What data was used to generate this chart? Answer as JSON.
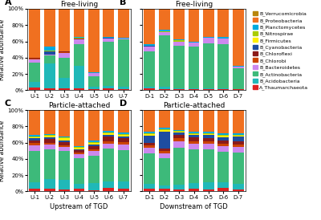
{
  "legend_labels_top_to_bottom": [
    "B_Verrucomicrobia",
    "B_Proteobacteria",
    "B_Planctomycetes",
    "B_Nitrospirae",
    "B_Firmicutes",
    "B_Cyanobacteria",
    "B_Chloroflexi",
    "B_Chlorobi",
    "B_Bacteroidetes",
    "B_Actinobacteria",
    "B_Acidobacteria",
    "A_Thaumarchaeota"
  ],
  "colors_top_to_bottom": [
    "#b8860b",
    "#f07020",
    "#00aadd",
    "#aacc00",
    "#ffee00",
    "#1e4da0",
    "#8b1a1a",
    "#cc4400",
    "#cc88ee",
    "#3dba7a",
    "#20b8b8",
    "#dd2222"
  ],
  "panel_A_title": "Free-living",
  "panel_B_title": "Free-living",
  "panel_C_title": "Particle-attached",
  "panel_D_title": "Particle-attached",
  "xlabel_left": "Upstream of TGD",
  "xlabel_right": "Downstream of TGD",
  "ylabel": "Relative abundance",
  "upstream_cats": [
    "U-1",
    "U-2",
    "U-3",
    "U-4",
    "U-5",
    "U-6",
    "U-7"
  ],
  "downstream_cats": [
    "D-1",
    "D-2",
    "D-3",
    "D-4",
    "D-5",
    "D-6",
    "D-7"
  ],
  "A_data_bottom_to_top": [
    [
      0.03,
      0.02,
      0.02,
      0.02,
      0.01,
      0.02,
      0.01
    ],
    [
      0.07,
      0.31,
      0.13,
      0.28,
      0.03,
      0.03,
      0.03
    ],
    [
      0.24,
      0.1,
      0.25,
      0.27,
      0.13,
      0.55,
      0.58
    ],
    [
      0.04,
      0.01,
      0.06,
      0.05,
      0.04,
      0.03,
      0.01
    ],
    [
      0.01,
      0.0,
      0.01,
      0.0,
      0.0,
      0.0,
      0.0
    ],
    [
      0.01,
      0.0,
      0.01,
      0.01,
      0.0,
      0.0,
      0.0
    ],
    [
      0.0,
      0.04,
      0.0,
      0.0,
      0.0,
      0.01,
      0.0
    ],
    [
      0.0,
      0.0,
      0.0,
      0.0,
      0.0,
      0.0,
      0.0
    ],
    [
      0.0,
      0.01,
      0.0,
      0.01,
      0.0,
      0.0,
      0.0
    ],
    [
      0.0,
      0.05,
      0.0,
      0.01,
      0.01,
      0.01,
      0.01
    ],
    [
      0.6,
      0.46,
      0.52,
      0.35,
      0.78,
      0.35,
      0.36
    ],
    [
      0.0,
      0.0,
      0.0,
      0.0,
      0.0,
      0.0,
      0.0
    ]
  ],
  "B_data_bottom_to_top": [
    [
      0.02,
      0.01,
      0.01,
      0.01,
      0.01,
      0.01,
      0.01
    ],
    [
      0.02,
      0.03,
      0.01,
      0.01,
      0.01,
      0.01,
      0.0
    ],
    [
      0.44,
      0.63,
      0.53,
      0.52,
      0.56,
      0.55,
      0.26
    ],
    [
      0.06,
      0.04,
      0.05,
      0.05,
      0.06,
      0.06,
      0.02
    ],
    [
      0.0,
      0.0,
      0.0,
      0.0,
      0.0,
      0.0,
      0.0
    ],
    [
      0.0,
      0.0,
      0.0,
      0.0,
      0.0,
      0.0,
      0.0
    ],
    [
      0.01,
      0.0,
      0.0,
      0.0,
      0.0,
      0.0,
      0.0
    ],
    [
      0.0,
      0.0,
      0.0,
      0.0,
      0.0,
      0.0,
      0.0
    ],
    [
      0.0,
      0.01,
      0.01,
      0.0,
      0.0,
      0.0,
      0.0
    ],
    [
      0.02,
      0.02,
      0.01,
      0.01,
      0.01,
      0.02,
      0.01
    ],
    [
      0.43,
      0.26,
      0.38,
      0.4,
      0.35,
      0.35,
      0.7
    ],
    [
      0.0,
      0.0,
      0.0,
      0.0,
      0.0,
      0.0,
      0.0
    ]
  ],
  "C_data_bottom_to_top": [
    [
      0.03,
      0.03,
      0.02,
      0.03,
      0.01,
      0.04,
      0.03
    ],
    [
      0.08,
      0.12,
      0.12,
      0.06,
      0.09,
      0.08,
      0.09
    ],
    [
      0.39,
      0.37,
      0.36,
      0.32,
      0.34,
      0.41,
      0.39
    ],
    [
      0.07,
      0.06,
      0.05,
      0.05,
      0.06,
      0.06,
      0.07
    ],
    [
      0.03,
      0.02,
      0.02,
      0.02,
      0.02,
      0.03,
      0.03
    ],
    [
      0.03,
      0.04,
      0.04,
      0.03,
      0.04,
      0.05,
      0.04
    ],
    [
      0.02,
      0.02,
      0.02,
      0.01,
      0.02,
      0.02,
      0.02
    ],
    [
      0.01,
      0.02,
      0.02,
      0.02,
      0.02,
      0.02,
      0.02
    ],
    [
      0.01,
      0.01,
      0.01,
      0.01,
      0.01,
      0.01,
      0.01
    ],
    [
      0.02,
      0.01,
      0.01,
      0.01,
      0.02,
      0.02,
      0.02
    ],
    [
      0.31,
      0.3,
      0.33,
      0.44,
      0.37,
      0.26,
      0.28
    ],
    [
      0.0,
      0.0,
      0.0,
      0.0,
      0.0,
      0.0,
      0.0
    ]
  ],
  "D_data_bottom_to_top": [
    [
      0.03,
      0.03,
      0.02,
      0.03,
      0.02,
      0.04,
      0.02
    ],
    [
      0.06,
      0.04,
      0.06,
      0.07,
      0.09,
      0.07,
      0.07
    ],
    [
      0.38,
      0.34,
      0.46,
      0.42,
      0.41,
      0.38,
      0.39
    ],
    [
      0.07,
      0.06,
      0.08,
      0.07,
      0.07,
      0.07,
      0.07
    ],
    [
      0.03,
      0.03,
      0.03,
      0.03,
      0.03,
      0.03,
      0.03
    ],
    [
      0.03,
      0.03,
      0.04,
      0.04,
      0.03,
      0.04,
      0.04
    ],
    [
      0.08,
      0.2,
      0.03,
      0.03,
      0.04,
      0.03,
      0.05
    ],
    [
      0.02,
      0.02,
      0.01,
      0.01,
      0.01,
      0.02,
      0.01
    ],
    [
      0.01,
      0.01,
      0.01,
      0.01,
      0.01,
      0.01,
      0.01
    ],
    [
      0.02,
      0.02,
      0.01,
      0.02,
      0.02,
      0.02,
      0.02
    ],
    [
      0.27,
      0.22,
      0.25,
      0.27,
      0.27,
      0.29,
      0.29
    ],
    [
      0.0,
      0.0,
      0.0,
      0.0,
      0.0,
      0.0,
      0.0
    ]
  ],
  "yticks": [
    0,
    0.2,
    0.4,
    0.6,
    0.8,
    1.0
  ],
  "yticklabels": [
    "0%",
    "20%",
    "40%",
    "60%",
    "80%",
    "100%"
  ]
}
